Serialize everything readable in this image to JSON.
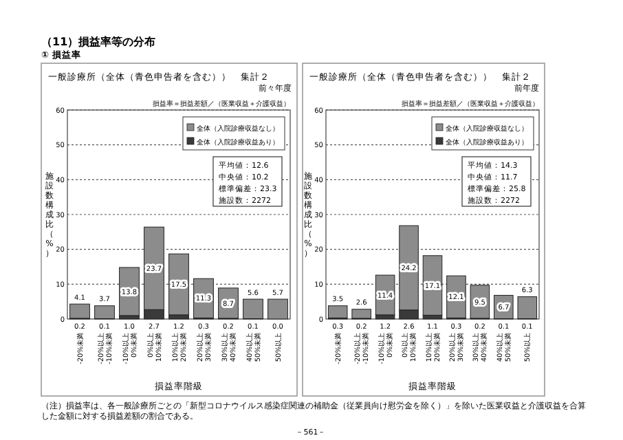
{
  "chart_data": [
    {
      "type": "bar",
      "stacked": true,
      "title": "一般診療所（全体（青色申告者を含む））　集計２",
      "subtitle": "前々年度",
      "xlabel": "損益率階級",
      "ylabel": "施設数構成比（%）",
      "categories": [
        "-20%未満",
        "-20%以上 -10%未満",
        "-10%以上 0%未満",
        "0%以上 10%未満",
        "10%以上 20%未満",
        "20%以上 30%未満",
        "30%以上 40%未満",
        "40%以上 50%未満",
        "50%以上"
      ],
      "series": [
        {
          "name": "全体（入院診療収益あり）",
          "color": "#3a3a3a",
          "values": [
            0.2,
            0.1,
            1.0,
            2.7,
            1.2,
            0.3,
            0.2,
            0.1,
            0.0
          ],
          "value_labels": [
            "0.2",
            "0.1",
            "1.0",
            "2.7",
            "1.2",
            "0.3",
            "0.2",
            "0.1",
            "0.0"
          ]
        },
        {
          "name": "全体（入院診療収益なし）",
          "color": "#8c8c8c",
          "values": [
            4.1,
            3.7,
            13.8,
            23.7,
            17.5,
            11.3,
            8.7,
            5.6,
            5.7
          ]
        }
      ],
      "ylim": [
        0,
        60
      ],
      "yticks": [
        0,
        10,
        20,
        30,
        40,
        50,
        60
      ],
      "grid": "y",
      "legend": "top right",
      "data_labels": true,
      "annotations": [
        "（11）損益率等の分布",
        "① 損益率",
        "損益率＝損益差額／（医業収益＋介護収益）",
        "平均値：12.6",
        "中央値：10.2",
        "標準偏差：23.3",
        "施設数：2272"
      ]
    },
    {
      "type": "bar",
      "stacked": true,
      "title": "一般診療所（全体（青色申告者を含む））　集計２",
      "subtitle": "前年度",
      "xlabel": "損益率階級",
      "ylabel": "施設数構成比（%）",
      "categories": [
        "-20%未満",
        "-20%以上 -10%未満",
        "-10%以上 0%未満",
        "0%以上 10%未満",
        "10%以上 20%未満",
        "20%以上 30%未満",
        "30%以上 40%未満",
        "40%以上 50%未満",
        "50%以上"
      ],
      "series": [
        {
          "name": "全体（入院診療収益あり）",
          "color": "#3a3a3a",
          "values": [
            0.3,
            0.2,
            1.2,
            2.6,
            1.1,
            0.3,
            0.2,
            0.1,
            0.1
          ],
          "value_labels": [
            "0.3",
            "0.2",
            "1.2",
            "2.6",
            "1.1",
            "0.3",
            "0.2",
            "0.1",
            "0.1"
          ]
        },
        {
          "name": "全体（入院診療収益なし）",
          "color": "#8c8c8c",
          "values": [
            3.5,
            2.6,
            11.4,
            24.2,
            17.1,
            12.1,
            9.5,
            6.7,
            6.3
          ]
        }
      ],
      "ylim": [
        0,
        60
      ],
      "yticks": [
        0,
        10,
        20,
        30,
        40,
        50,
        60
      ],
      "grid": "y",
      "legend": "top right",
      "data_labels": true,
      "annotations": [
        "損益率＝損益差額／（医業収益＋介護収益）",
        "平均値：14.3",
        "中央値：11.7",
        "標準偏差：25.8",
        "施設数：2272",
        "（注）損益率は、各一般診療所ごとの「新型コロナウイルス感染症関連の補助金（従業員向け慰労金を除く）」を除いた医業収益と介護収益を合算した金額に対する損益差額の割合である。",
        "－561－"
      ]
    }
  ]
}
